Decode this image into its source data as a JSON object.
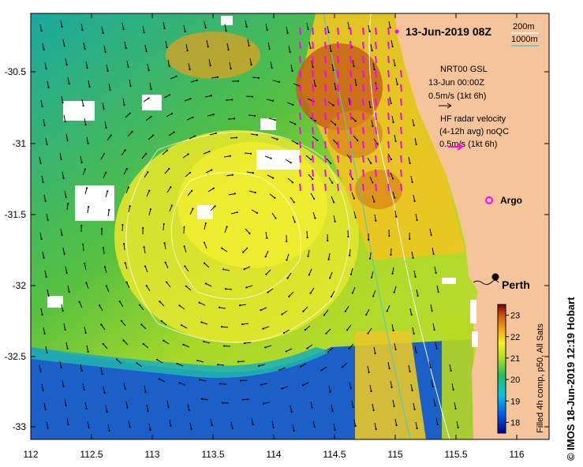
{
  "title": "13-Jun-2019 08Z",
  "contours": {
    "shallow_label": "200m",
    "deep_label": "1000m",
    "shallow_color": "#ffffff",
    "deep_color": "#40d0c8"
  },
  "legend": {
    "glider_title": "NRT00 GSL",
    "glider_time": "13-Jun 00:00Z",
    "glider_scale": "0.5m/s (1kt 6h)",
    "radar_title": "HF radar velocity",
    "radar_window": "(4-12h avg) noQC",
    "radar_scale": "0.5m/s (1kt 6h)",
    "radar_color": "#ff00ff",
    "argo_label": "Argo",
    "argo_color": "#ff00ff"
  },
  "places": {
    "city": "Perth"
  },
  "colorbar": {
    "caption": "Filled 4h comp, p50, All Sats",
    "ticks": [
      "18",
      "19",
      "20",
      "21",
      "22",
      "23"
    ],
    "range": [
      17.5,
      23.5
    ]
  },
  "axes": {
    "x_ticks": [
      "112",
      "112.5",
      "113",
      "113.5",
      "114",
      "114.5",
      "115",
      "115.5",
      "116"
    ],
    "y_ticks": [
      "-30.5",
      "-31",
      "-31.5",
      "-32",
      "-32.5",
      "-33"
    ]
  },
  "colors": {
    "land": "#f6c49a",
    "cloud": "#ffffff"
  },
  "credit": "© IMOS 18-Jun-2019 12:19 Hobart"
}
